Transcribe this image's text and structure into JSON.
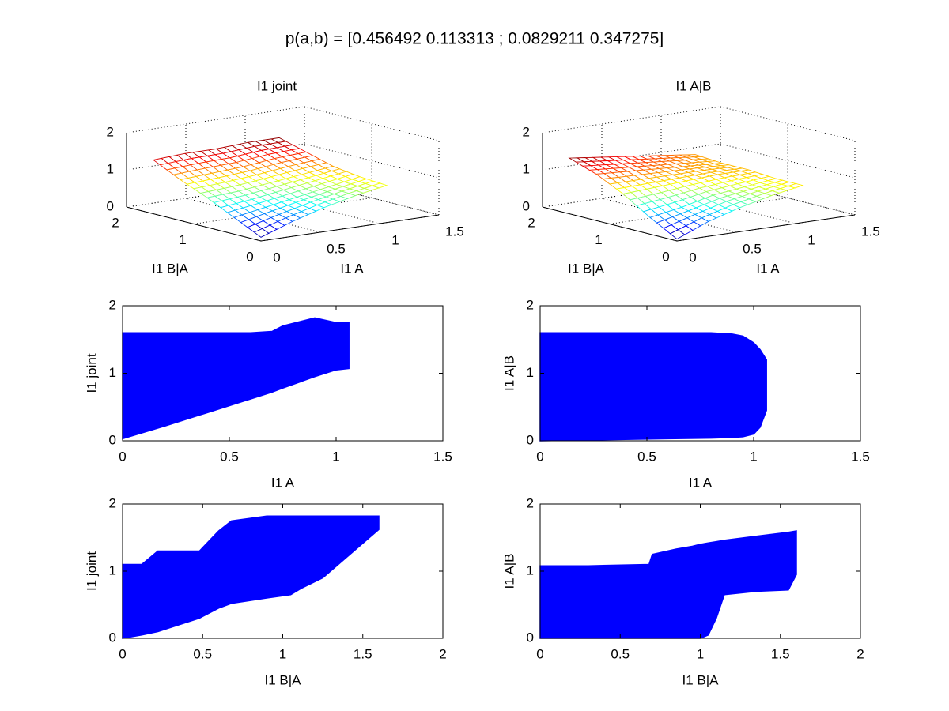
{
  "title": "p(a,b) = [0.456492 0.113313 ; 0.0829211 0.347275]",
  "chart_data": [
    {
      "type": "surface",
      "title": "I1 joint",
      "xlabel": "I1 A",
      "ylabel": "I1 B|A",
      "x": [
        0,
        0.265,
        0.53,
        0.795,
        1.06
      ],
      "y": [
        0,
        0.4,
        0.8,
        1.2,
        1.6
      ],
      "z": [
        [
          0.1,
          0.4,
          0.65,
          0.85,
          1.0
        ],
        [
          0.45,
          0.6,
          0.75,
          0.9,
          1.05
        ],
        [
          0.8,
          0.85,
          0.95,
          1.05,
          1.15
        ],
        [
          1.1,
          1.15,
          1.2,
          1.3,
          1.35
        ],
        [
          1.45,
          1.5,
          1.5,
          1.55,
          1.55
        ]
      ],
      "xlim": [
        0,
        1.5
      ],
      "xticks": [
        0,
        0.5,
        1,
        1.5
      ],
      "ylim": [
        0,
        2
      ],
      "yticks": [
        0,
        1,
        2
      ],
      "zlim": [
        0,
        2
      ],
      "zticks": [
        0,
        1,
        2
      ],
      "colormap": "jet",
      "grid": true
    },
    {
      "type": "surface",
      "title": "I1 A|B",
      "xlabel": "I1 A",
      "ylabel": "I1 B|A",
      "x": [
        0,
        0.265,
        0.53,
        0.795,
        1.06
      ],
      "y": [
        0,
        0.4,
        0.8,
        1.2,
        1.6
      ],
      "z": [
        [
          0.05,
          0.4,
          0.65,
          0.85,
          1.0
        ],
        [
          0.45,
          0.6,
          0.8,
          0.9,
          1.0
        ],
        [
          0.9,
          0.95,
          1.0,
          1.05,
          1.05
        ],
        [
          1.25,
          1.2,
          1.15,
          1.1,
          1.05
        ],
        [
          1.5,
          1.4,
          1.3,
          1.2,
          1.1
        ]
      ],
      "xlim": [
        0,
        1.5
      ],
      "xticks": [
        0,
        0.5,
        1,
        1.5
      ],
      "ylim": [
        0,
        2
      ],
      "yticks": [
        0,
        1,
        2
      ],
      "zlim": [
        0,
        2
      ],
      "zticks": [
        0,
        1,
        2
      ],
      "colormap": "jet",
      "grid": true
    },
    {
      "type": "band",
      "xlabel": "I1 A",
      "ylabel": "I1 joint",
      "color": "#0000ff",
      "x": [
        0,
        0.2,
        0.4,
        0.6,
        0.7,
        0.75,
        0.9,
        1.0,
        1.06
      ],
      "low": [
        0.03,
        0.22,
        0.42,
        0.62,
        0.72,
        0.78,
        0.95,
        1.05,
        1.07
      ],
      "high": [
        1.6,
        1.6,
        1.6,
        1.6,
        1.62,
        1.7,
        1.82,
        1.75,
        1.75
      ],
      "xlim": [
        0,
        1.5
      ],
      "xticks": [
        0,
        0.5,
        1,
        1.5
      ],
      "ylim": [
        0,
        2
      ],
      "yticks": [
        0,
        1,
        2
      ]
    },
    {
      "type": "band",
      "xlabel": "I1 A",
      "ylabel": "I1 A|B",
      "color": "#0000ff",
      "x": [
        0,
        0.2,
        0.4,
        0.6,
        0.8,
        0.9,
        0.95,
        1.0,
        1.03,
        1.06
      ],
      "low": [
        0,
        0.01,
        0.02,
        0.03,
        0.04,
        0.05,
        0.06,
        0.1,
        0.2,
        0.45
      ],
      "high": [
        1.6,
        1.6,
        1.6,
        1.6,
        1.6,
        1.58,
        1.55,
        1.45,
        1.35,
        1.2
      ],
      "xlim": [
        0,
        1.5
      ],
      "xticks": [
        0,
        0.5,
        1,
        1.5
      ],
      "ylim": [
        0,
        2
      ],
      "yticks": [
        0,
        1,
        2
      ]
    },
    {
      "type": "band",
      "xlabel": "I1 B|A",
      "ylabel": "I1 joint",
      "color": "#0000ff",
      "x": [
        0,
        0.12,
        0.22,
        0.35,
        0.48,
        0.6,
        0.68,
        0.9,
        1.05,
        1.12,
        1.25,
        1.6
      ],
      "low": [
        0,
        0.05,
        0.1,
        0.2,
        0.3,
        0.45,
        0.52,
        0.6,
        0.65,
        0.75,
        0.9,
        1.62
      ],
      "high": [
        1.1,
        1.1,
        1.3,
        1.3,
        1.3,
        1.6,
        1.75,
        1.82,
        1.82,
        1.82,
        1.82,
        1.82
      ],
      "xlim": [
        0,
        2
      ],
      "xticks": [
        0,
        0.5,
        1,
        1.5,
        2
      ],
      "ylim": [
        0,
        2
      ],
      "yticks": [
        0,
        1,
        2
      ]
    },
    {
      "type": "band",
      "xlabel": "I1 B|A",
      "ylabel": "I1 A|B",
      "color": "#0000ff",
      "x": [
        0,
        0.3,
        0.68,
        0.7,
        0.85,
        0.95,
        1.0,
        1.05,
        1.1,
        1.15,
        1.35,
        1.55,
        1.6
      ],
      "low": [
        0,
        0,
        0,
        0,
        0,
        0,
        0,
        0.05,
        0.3,
        0.65,
        0.7,
        0.72,
        0.95
      ],
      "high": [
        1.08,
        1.08,
        1.1,
        1.25,
        1.33,
        1.37,
        1.4,
        1.42,
        1.44,
        1.46,
        1.52,
        1.58,
        1.6
      ],
      "xlim": [
        0,
        2
      ],
      "xticks": [
        0,
        0.5,
        1,
        1.5,
        2
      ],
      "ylim": [
        0,
        2
      ],
      "yticks": [
        0,
        1,
        2
      ]
    }
  ]
}
